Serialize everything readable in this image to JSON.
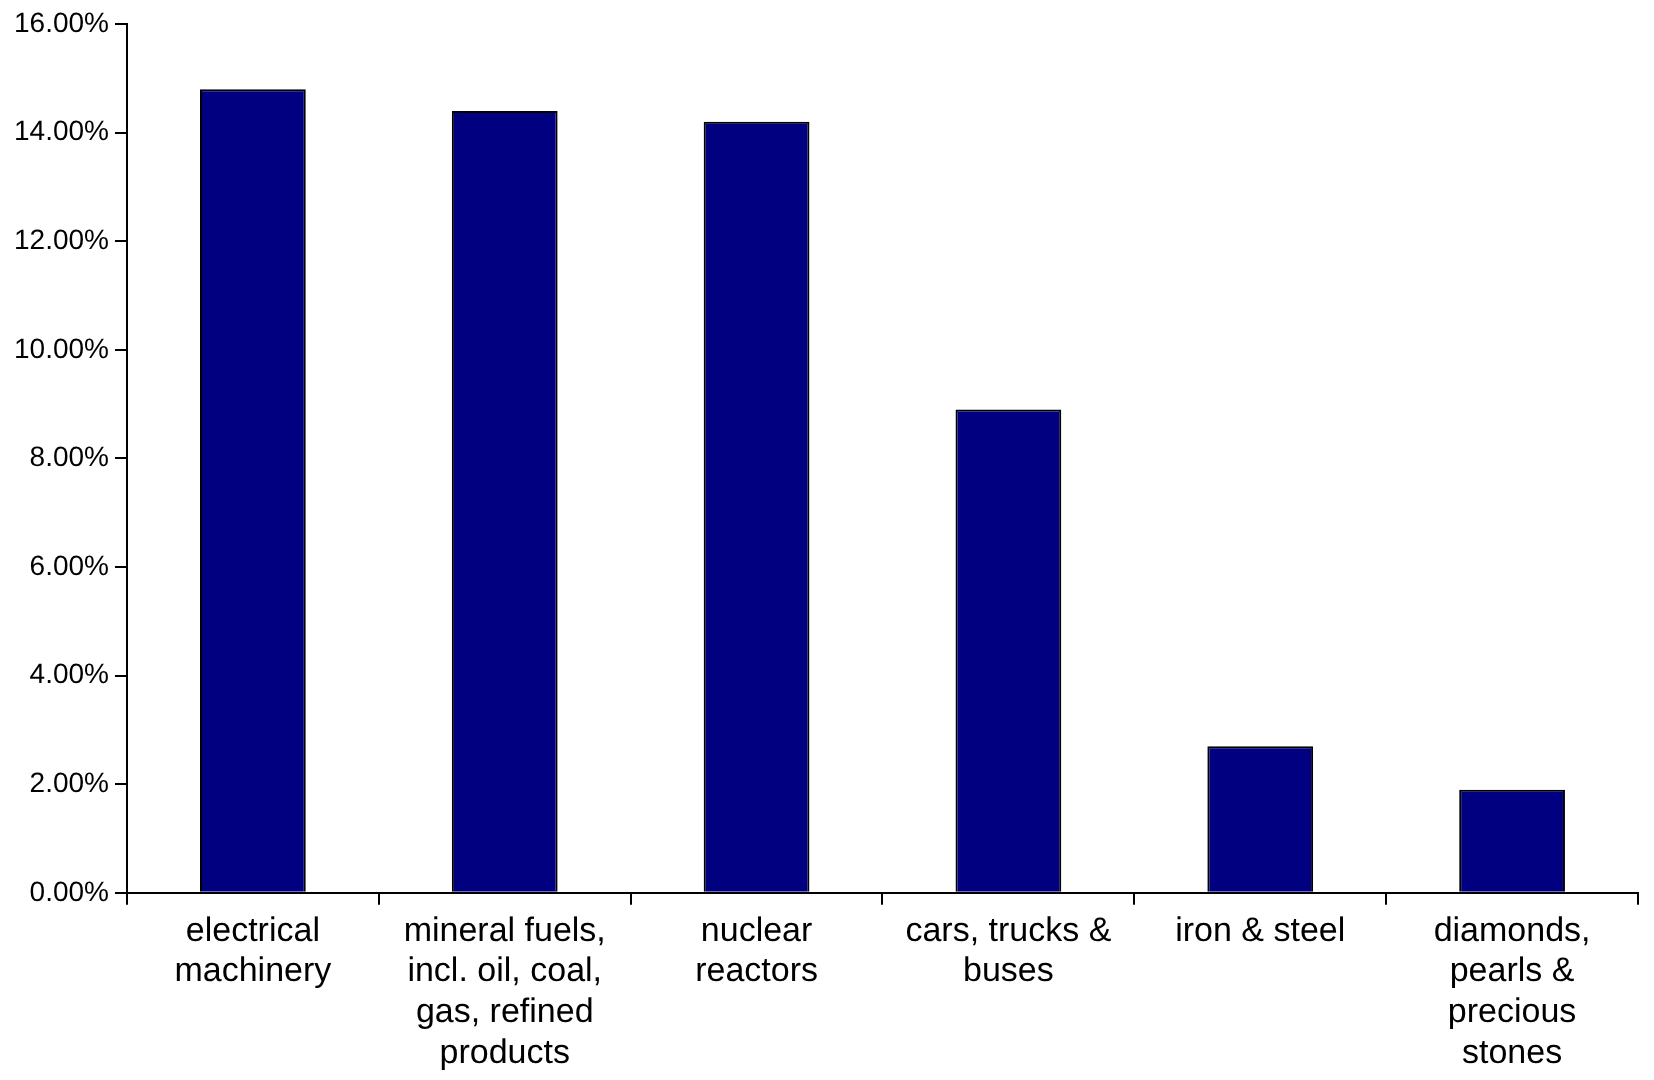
{
  "chart_data": {
    "type": "bar",
    "categories": [
      "electrical machinery",
      "mineral fuels, incl. oil, coal, gas, refined products",
      "nuclear reactors",
      "cars, trucks & buses",
      "iron & steel",
      "diamonds, pearls & precious stones"
    ],
    "values": [
      14.8,
      14.4,
      14.2,
      8.9,
      2.7,
      1.9
    ],
    "color": "#000080",
    "ylim": [
      0,
      16
    ],
    "yticks": [
      {
        "value": 0,
        "label": "0.00%"
      },
      {
        "value": 2,
        "label": "2.00%"
      },
      {
        "value": 4,
        "label": "4.00%"
      },
      {
        "value": 6,
        "label": "6.00%"
      },
      {
        "value": 8,
        "label": "8.00%"
      },
      {
        "value": 10,
        "label": "10.00%"
      },
      {
        "value": 12,
        "label": "12.00%"
      },
      {
        "value": 14,
        "label": "14.00%"
      },
      {
        "value": 16,
        "label": "16.00%"
      }
    ],
    "grid": false,
    "legend": false
  }
}
